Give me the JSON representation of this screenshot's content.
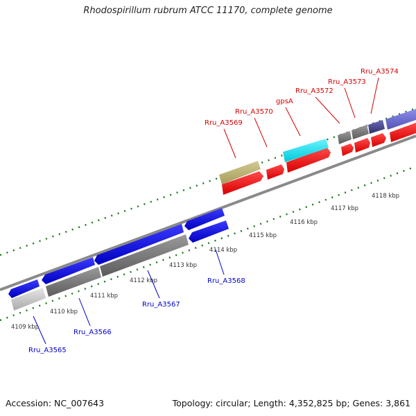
{
  "title": "Rhodospirillum rubrum ATCC 11170, complete genome",
  "footer": {
    "accession": "Accession: NC_007643",
    "summary": "Topology: circular; Length: 4,352,825 bp; Genes: 3,861"
  },
  "colors": {
    "forward_label": "#d40000",
    "reverse_label": "#0000c8",
    "backbone": "#8a8a8a",
    "tick": "#1f7a1f"
  },
  "kbp_labels": [
    "4109 kbp",
    "4110 kbp",
    "4111 kbp",
    "4112 kbp",
    "4113 kbp",
    "4114 kbp",
    "4115 kbp",
    "4116 kbp",
    "4117 kbp",
    "4118 kbp"
  ],
  "forward_genes": [
    {
      "name": "Rru_A3569",
      "color": "#d40000"
    },
    {
      "name": "Rru_A3570",
      "color": "#d40000"
    },
    {
      "name": "gpsA",
      "color": "#d40000"
    },
    {
      "name": "Rru_A3572",
      "color": "#d40000"
    },
    {
      "name": "Rru_A3573",
      "color": "#d40000"
    },
    {
      "name": "Rru_A3574",
      "color": "#d40000"
    }
  ],
  "reverse_genes": [
    {
      "name": "Rru_A3565",
      "color": "#0000c8"
    },
    {
      "name": "Rru_A3566",
      "color": "#0000c8"
    },
    {
      "name": "Rru_A3567",
      "color": "#0000c8"
    },
    {
      "name": "Rru_A3568",
      "color": "#0000c8"
    }
  ]
}
